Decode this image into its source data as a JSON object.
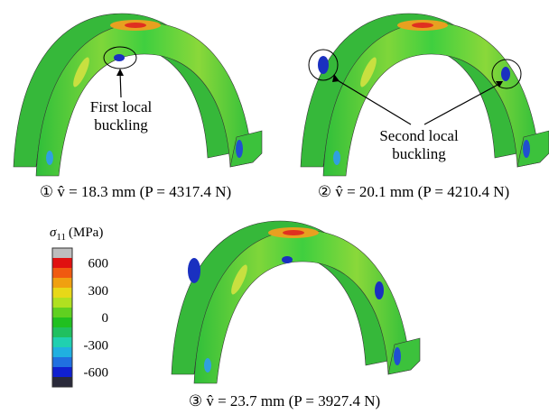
{
  "panels": [
    {
      "caption": "① v̂ = 18.3 mm (P = 4317.4 N)",
      "annotation": [
        "First local",
        "buckling"
      ]
    },
    {
      "caption": "② v̂ = 20.1 mm (P = 4210.4 N)",
      "annotation": [
        "Second local",
        "buckling"
      ]
    },
    {
      "caption": "③ v̂ = 23.7 mm (P = 3927.4 N)"
    }
  ],
  "colorbar": {
    "symbol": "σ",
    "subscript": "11",
    "unit": "(MPa)",
    "ticks": [
      600,
      300,
      0,
      -300,
      -600
    ]
  }
}
